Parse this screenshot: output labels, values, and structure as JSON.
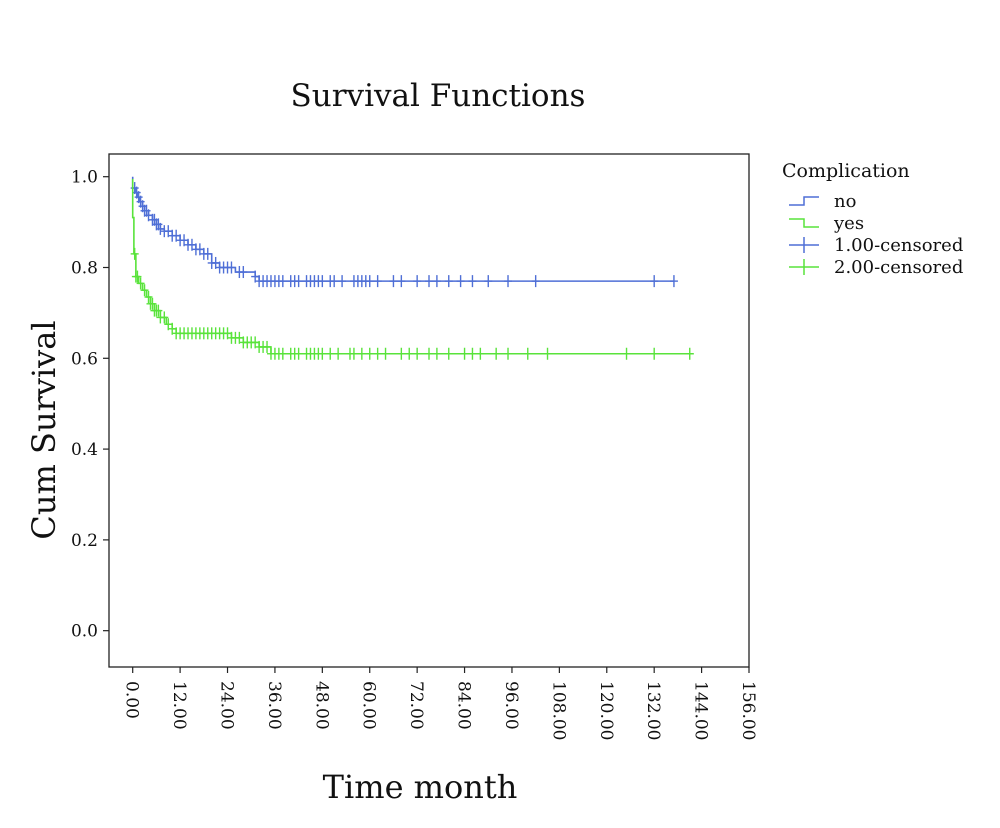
{
  "chart_data": {
    "type": "line",
    "title": "Survival Functions",
    "xlabel": "Time month",
    "ylabel": "Cum Survival",
    "xlim": [
      -6,
      156
    ],
    "ylim": [
      -0.08,
      1.05
    ],
    "x_ticks": [
      "0.00",
      "12.00",
      "24.00",
      "36.00",
      "48.00",
      "60.00",
      "72.00",
      "84.00",
      "96.00",
      "108.00",
      "120.00",
      "132.00",
      "144.00",
      "156.00"
    ],
    "y_ticks": [
      "0.0",
      "0.2",
      "0.4",
      "0.6",
      "0.8",
      "1.0"
    ],
    "legend_title": "Complication",
    "legend": [
      "no",
      "yes",
      "1.00-censored",
      "2.00-censored"
    ],
    "colors": {
      "no": "#4f6fd6",
      "yes": "#59e33b"
    },
    "series": [
      {
        "name": "no",
        "steps": [
          [
            0,
            1.0
          ],
          [
            0,
            0.975
          ],
          [
            0.8,
            0.965
          ],
          [
            1.2,
            0.955
          ],
          [
            1.8,
            0.945
          ],
          [
            2.5,
            0.935
          ],
          [
            3,
            0.925
          ],
          [
            4,
            0.915
          ],
          [
            5,
            0.905
          ],
          [
            6,
            0.895
          ],
          [
            7,
            0.885
          ],
          [
            8,
            0.88
          ],
          [
            10,
            0.87
          ],
          [
            12,
            0.86
          ],
          [
            14,
            0.85
          ],
          [
            16,
            0.84
          ],
          [
            18,
            0.83
          ],
          [
            20,
            0.81
          ],
          [
            22,
            0.8
          ],
          [
            26,
            0.79
          ],
          [
            31,
            0.78
          ],
          [
            32,
            0.77
          ],
          [
            137,
            0.77
          ]
        ],
        "censored": [
          0.5,
          1,
          1.5,
          2,
          2.5,
          3,
          3.5,
          4,
          5,
          5.5,
          6,
          6.5,
          7,
          8,
          9,
          10,
          11,
          12,
          13,
          14,
          15,
          16,
          17,
          18,
          19,
          20,
          21,
          22,
          23,
          24,
          25,
          27,
          28,
          31,
          32,
          33,
          34,
          35,
          36,
          37,
          38,
          40,
          41,
          42,
          44,
          45,
          46,
          47,
          48,
          50,
          51,
          53,
          56,
          57,
          58,
          59,
          60,
          62,
          66,
          68,
          72,
          75,
          77,
          80,
          83,
          86,
          90,
          95,
          102,
          132,
          137
        ]
      },
      {
        "name": "yes",
        "steps": [
          [
            0,
            0.995
          ],
          [
            0,
            0.91
          ],
          [
            0.3,
            0.83
          ],
          [
            0.8,
            0.78
          ],
          [
            1.5,
            0.765
          ],
          [
            2.5,
            0.75
          ],
          [
            3.5,
            0.735
          ],
          [
            4.5,
            0.72
          ],
          [
            5.5,
            0.705
          ],
          [
            7,
            0.69
          ],
          [
            8.5,
            0.675
          ],
          [
            10,
            0.665
          ],
          [
            11,
            0.655
          ],
          [
            25,
            0.645
          ],
          [
            28,
            0.635
          ],
          [
            32,
            0.625
          ],
          [
            35,
            0.61
          ],
          [
            142,
            0.61
          ]
        ],
        "censored": [
          0.5,
          0.8,
          1.2,
          2,
          3,
          4,
          4.5,
          5,
          5.5,
          6,
          6.5,
          7,
          8,
          9,
          10,
          11,
          12,
          13,
          14,
          15,
          16,
          17,
          18,
          19,
          20,
          21,
          22,
          23,
          24,
          25,
          26,
          27,
          28,
          29,
          30,
          31,
          32,
          33,
          34,
          35,
          36,
          37,
          38,
          40,
          41,
          42,
          44,
          45,
          46,
          47,
          48,
          50,
          52,
          55,
          56,
          58,
          60,
          62,
          64,
          68,
          70,
          72,
          75,
          77,
          80,
          84,
          86,
          88,
          92,
          95,
          100,
          105,
          125,
          132,
          141
        ]
      }
    ]
  }
}
